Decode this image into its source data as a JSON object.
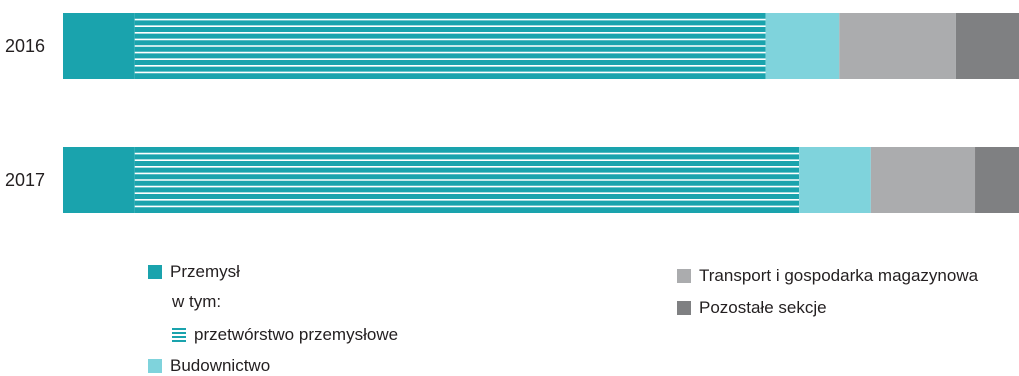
{
  "chart_data": {
    "type": "bar",
    "orientation": "horizontal",
    "stacked": true,
    "categories": [
      "2016",
      "2017"
    ],
    "xlim": [
      0,
      100
    ],
    "series": [
      {
        "name": "Przemysł",
        "color": "#1aa3ad",
        "values": [
          7.5,
          7.5
        ]
      },
      {
        "name": "przetwórstwo przemysłowe",
        "color": "#1aa3ad",
        "pattern": "horizontal-stripes",
        "values": [
          66.0,
          69.5
        ]
      },
      {
        "name": "Budownictwo",
        "color": "#7fd3dc",
        "values": [
          7.7,
          7.5
        ]
      },
      {
        "name": "Transport i gospodarka magazynowa",
        "color": "#abacae",
        "values": [
          12.2,
          10.9
        ]
      },
      {
        "name": "Pozostałe sekcje",
        "color": "#7f8082",
        "values": [
          6.6,
          4.6
        ]
      }
    ],
    "grid": false,
    "legend_position": "bottom"
  },
  "legend": {
    "przemysl": "Przemysł",
    "w_tym": "w tym:",
    "przetworstwo": "przetwórstwo przemysłowe",
    "budownictwo": "Budownictwo",
    "transport": "Transport i gospodarka magazynowa",
    "pozostale": "Pozostałe sekcje"
  }
}
